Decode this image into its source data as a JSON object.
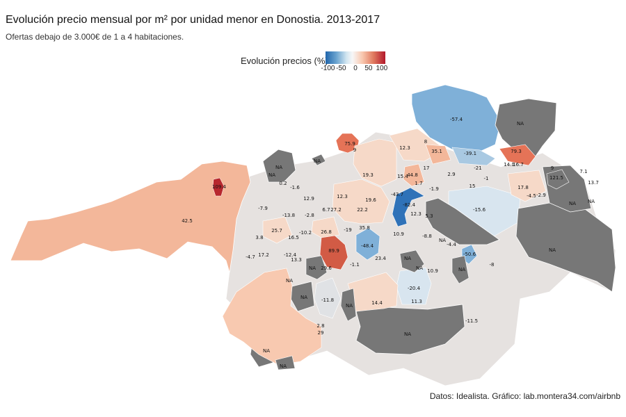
{
  "title": "Evolución precio mensual por m² por unidad menor en Donostia. 2013-2017",
  "subtitle": "Ofertas debajo de 3.000€ de 1 a 4 habitaciones.",
  "legend": {
    "title": "Evolución precios (%)",
    "ticks": [
      "-100",
      "-50",
      "0",
      "50",
      "100"
    ]
  },
  "source": "Datos: Idealista. Gráfico: lab.montera34.com/airbnb",
  "colors": {
    "na": "#777777",
    "strong_neg": "#2f72b8",
    "neg": "#7fb0d8",
    "light_neg": "#d8e5ef",
    "neutral": "#e6e2e0",
    "light_pos": "#f6d9c8",
    "pos": "#f3b79a",
    "strong_pos": "#e57357",
    "max_pos": "#b7282e"
  },
  "regions": [
    {
      "label": "42.5",
      "value": 42.5
    },
    {
      "label": "109.4",
      "value": 109.4
    },
    {
      "label": "NA",
      "value": null
    },
    {
      "label": "-7.9",
      "value": -7.9
    },
    {
      "label": "0.2",
      "value": 0.2
    },
    {
      "label": "-1.6",
      "value": -1.6
    },
    {
      "label": "-13.8",
      "value": -13.8
    },
    {
      "label": "-2.8",
      "value": -2.8
    },
    {
      "label": "25.7",
      "value": 25.7
    },
    {
      "label": "16.5",
      "value": 16.5
    },
    {
      "label": "-10.2",
      "value": -10.2
    },
    {
      "label": "3.8",
      "value": 3.8
    },
    {
      "label": "17.2",
      "value": 17.2
    },
    {
      "label": "-4.7",
      "value": -4.7
    },
    {
      "label": "-12.4",
      "value": -12.4
    },
    {
      "label": "13.3",
      "value": 13.3
    },
    {
      "label": "12.9",
      "value": 12.9
    },
    {
      "label": "6.7",
      "value": 6.7
    },
    {
      "label": "27.2",
      "value": 27.2
    },
    {
      "label": "12.3",
      "value": 12.3
    },
    {
      "label": "26.8",
      "value": 26.8
    },
    {
      "label": "89.9",
      "value": 89.9
    },
    {
      "label": "29.6",
      "value": 29.6
    },
    {
      "label": "-1.1",
      "value": -1.1
    },
    {
      "label": "-11.8",
      "value": -11.8
    },
    {
      "label": "2.8",
      "value": 2.8
    },
    {
      "label": "29",
      "value": 29
    },
    {
      "label": "75.9",
      "value": 75.9
    },
    {
      "label": "9",
      "value": 9
    },
    {
      "label": "19.3",
      "value": 19.3
    },
    {
      "label": "19.6",
      "value": 19.6
    },
    {
      "label": "22.2",
      "value": 22.2
    },
    {
      "label": "35.8",
      "value": 35.8
    },
    {
      "label": "-19",
      "value": -19
    },
    {
      "label": "-48.4",
      "value": -48.4
    },
    {
      "label": "23.4",
      "value": 23.4
    },
    {
      "label": "12.3",
      "value": 12.3
    },
    {
      "label": "8",
      "value": 8
    },
    {
      "label": "35.1",
      "value": 35.1
    },
    {
      "label": "15.4",
      "value": 15.4
    },
    {
      "label": "44.8",
      "value": 44.8
    },
    {
      "label": "17",
      "value": 17
    },
    {
      "label": "1.7",
      "value": 1.7
    },
    {
      "label": "-43.7",
      "value": -43.7
    },
    {
      "label": "-82.4",
      "value": -82.4
    },
    {
      "label": "12.3",
      "value": 12.3
    },
    {
      "label": "5.3",
      "value": 5.3
    },
    {
      "label": "-1.9",
      "value": -1.9
    },
    {
      "label": "10.9",
      "value": 10.9
    },
    {
      "label": "-8.8",
      "value": -8.8
    },
    {
      "label": "-57.4",
      "value": -57.4
    },
    {
      "label": "-39.1",
      "value": -39.1
    },
    {
      "label": "79.3",
      "value": 79.3
    },
    {
      "label": "14.1",
      "value": 14.1
    },
    {
      "label": "16.7",
      "value": 16.7
    },
    {
      "label": "2.9",
      "value": 2.9
    },
    {
      "label": "-21",
      "value": -21
    },
    {
      "label": "-1",
      "value": -1
    },
    {
      "label": "15",
      "value": 15
    },
    {
      "label": "-15.6",
      "value": -15.6
    },
    {
      "label": "-4.4",
      "value": -4.4
    },
    {
      "label": "-50.6",
      "value": -50.6
    },
    {
      "label": "-8",
      "value": -8
    },
    {
      "label": "10.9",
      "value": 10.9
    },
    {
      "label": "-20.4",
      "value": -20.4
    },
    {
      "label": "11.3",
      "value": 11.3
    },
    {
      "label": "14.4",
      "value": 14.4
    },
    {
      "label": "-11.5",
      "value": -11.5
    },
    {
      "label": "9",
      "value": 9
    },
    {
      "label": "7.1",
      "value": 7.1
    },
    {
      "label": "121.5",
      "value": 121.5
    },
    {
      "label": "13.7",
      "value": 13.7
    },
    {
      "label": "17.8",
      "value": 17.8
    },
    {
      "label": "-4.5",
      "value": -4.5
    },
    {
      "label": "-2.9",
      "value": -2.9
    }
  ]
}
